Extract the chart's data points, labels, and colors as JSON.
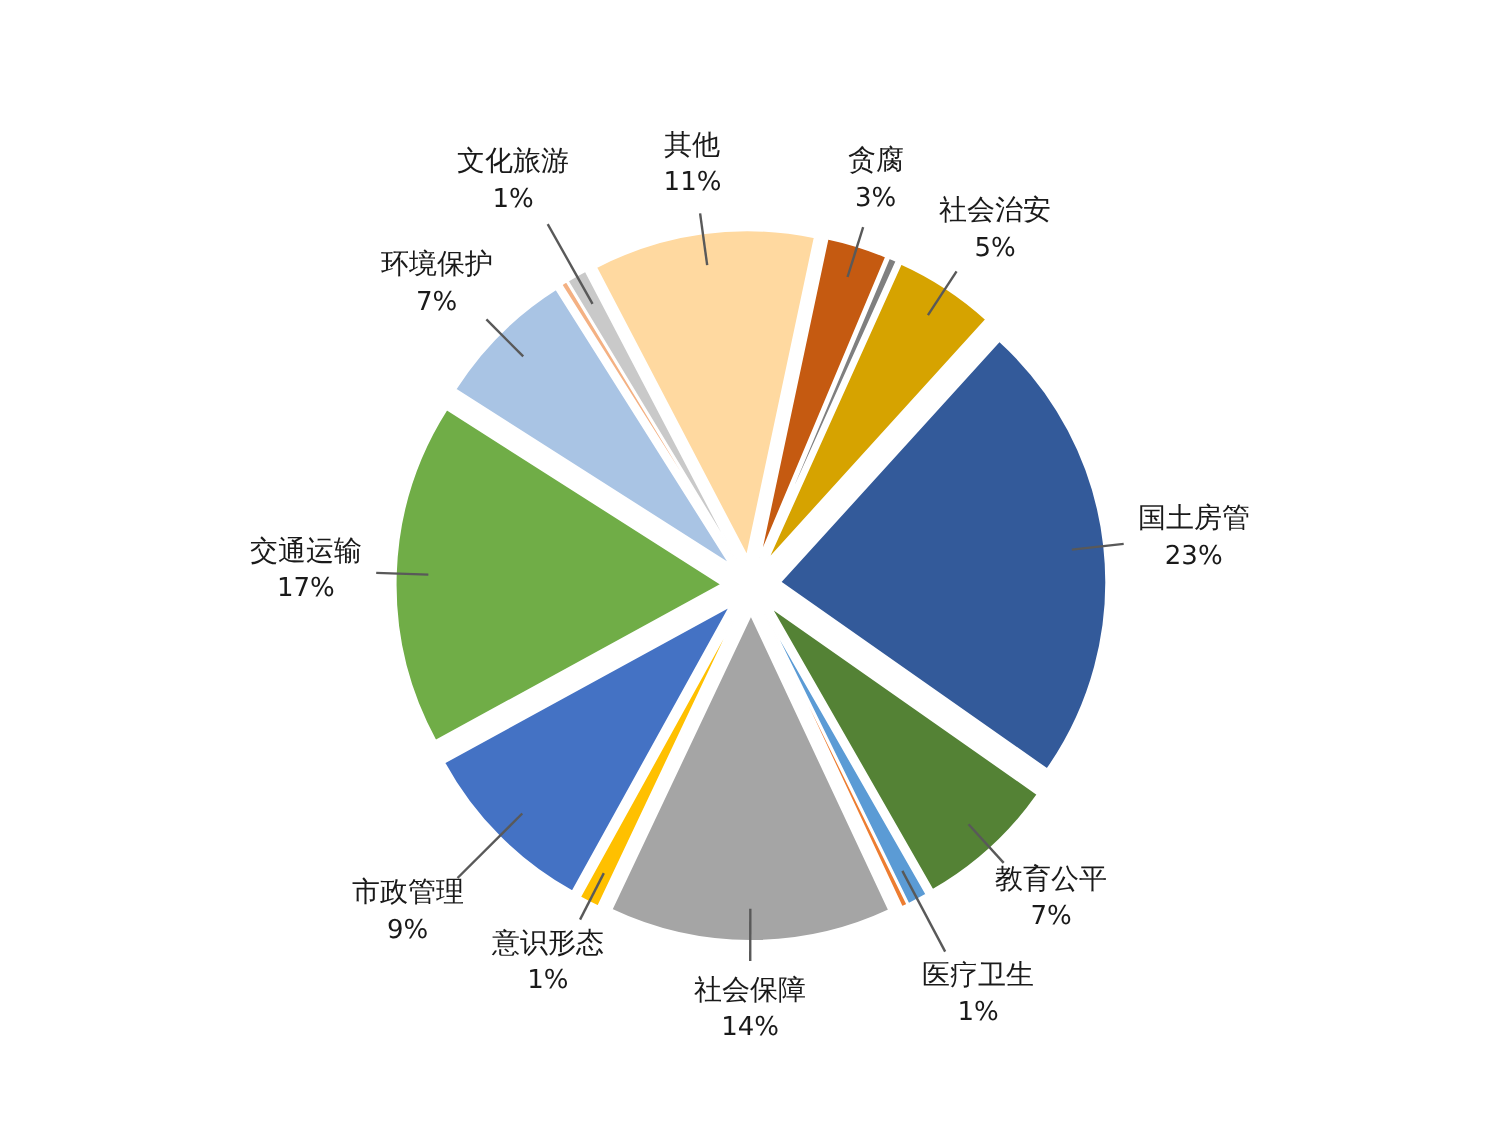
{
  "chart_data": {
    "type": "pie",
    "categories": [
      "贪腐",
      null,
      "社会治安",
      "国土房管",
      "教育公平",
      "医疗卫生",
      null,
      "社会保障",
      "意识形态",
      "市政管理",
      "交通运输",
      "环境保护",
      null,
      "文化旅游",
      "其他"
    ],
    "values": [
      3,
      0.4,
      5,
      23,
      7,
      1,
      0.3,
      14,
      1,
      9,
      17,
      7,
      0.3,
      1,
      11
    ],
    "value_labels": [
      "3%",
      null,
      "5%",
      "23%",
      "7%",
      "1%",
      null,
      "14%",
      "1%",
      "9%",
      "17%",
      "7%",
      null,
      "1%",
      "11%"
    ],
    "colors": [
      "#c55a11",
      "#7f7f7f",
      "#d6a300",
      "#335a9a",
      "#548235",
      "#5b9bd5",
      "#ed7d31",
      "#a5a5a5",
      "#ffc000",
      "#4472c4",
      "#70ad47",
      "#a9c4e4",
      "#f4b183",
      "#c9c9c9",
      "#ffd9a0"
    ]
  }
}
